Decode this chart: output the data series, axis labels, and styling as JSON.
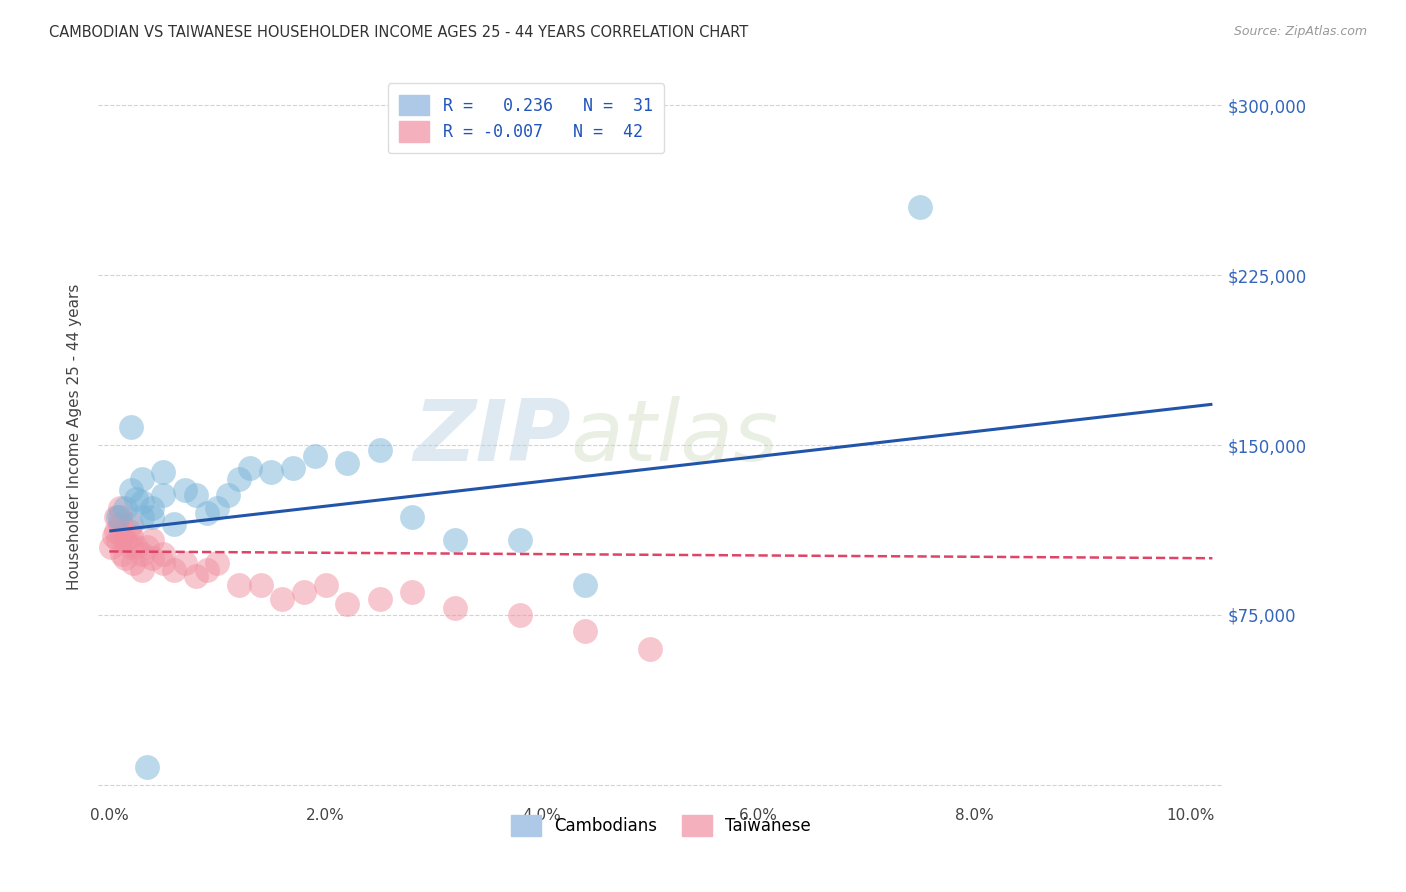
{
  "title": "CAMBODIAN VS TAIWANESE HOUSEHOLDER INCOME AGES 25 - 44 YEARS CORRELATION CHART",
  "source": "Source: ZipAtlas.com",
  "ylabel": "Householder Income Ages 25 - 44 years",
  "y_ticks": [
    0,
    75000,
    150000,
    225000,
    300000
  ],
  "y_tick_labels_right": [
    "",
    "$75,000",
    "$150,000",
    "$225,000",
    "$300,000"
  ],
  "xlim": [
    -0.001,
    0.103
  ],
  "ylim": [
    -8000,
    315000
  ],
  "legend_bottom": [
    "Cambodians",
    "Taiwanese"
  ],
  "cambodian_color": "#7ab4d8",
  "taiwanese_color": "#f090a0",
  "cambodian_line_color": "#2255aa",
  "taiwanese_line_color": "#dd4466",
  "background_color": "#ffffff",
  "grid_color": "#c8c8c8",
  "watermark_zip": "ZIP",
  "watermark_atlas": "atlas",
  "cambodians_x": [
    0.0008,
    0.0015,
    0.002,
    0.002,
    0.0025,
    0.003,
    0.003,
    0.003,
    0.004,
    0.004,
    0.005,
    0.005,
    0.006,
    0.007,
    0.008,
    0.009,
    0.01,
    0.011,
    0.012,
    0.013,
    0.015,
    0.017,
    0.019,
    0.022,
    0.025,
    0.028,
    0.032,
    0.038,
    0.044,
    0.0035,
    0.075
  ],
  "cambodians_y": [
    118000,
    122000,
    130000,
    158000,
    126000,
    118000,
    125000,
    135000,
    122000,
    118000,
    128000,
    138000,
    115000,
    130000,
    128000,
    120000,
    122000,
    128000,
    135000,
    140000,
    138000,
    140000,
    145000,
    142000,
    148000,
    118000,
    108000,
    108000,
    88000,
    8000,
    255000
  ],
  "taiwanese_x": [
    0.0002,
    0.0004,
    0.0006,
    0.0006,
    0.0008,
    0.001,
    0.001,
    0.001,
    0.0012,
    0.0012,
    0.0015,
    0.0015,
    0.0018,
    0.002,
    0.002,
    0.002,
    0.0022,
    0.0025,
    0.003,
    0.003,
    0.0035,
    0.004,
    0.004,
    0.005,
    0.005,
    0.006,
    0.007,
    0.008,
    0.009,
    0.01,
    0.012,
    0.014,
    0.016,
    0.018,
    0.02,
    0.022,
    0.025,
    0.028,
    0.032,
    0.038,
    0.044,
    0.05
  ],
  "taiwanese_y": [
    105000,
    110000,
    112000,
    118000,
    108000,
    115000,
    118000,
    122000,
    102000,
    110000,
    100000,
    108000,
    112000,
    105000,
    110000,
    115000,
    98000,
    105000,
    95000,
    102000,
    105000,
    100000,
    108000,
    98000,
    102000,
    95000,
    98000,
    92000,
    95000,
    98000,
    88000,
    88000,
    82000,
    85000,
    88000,
    80000,
    82000,
    85000,
    78000,
    75000,
    68000,
    60000
  ],
  "camb_trend_x0": 0.0,
  "camb_trend_y0": 112000,
  "camb_trend_x1": 0.102,
  "camb_trend_y1": 168000,
  "tai_trend_x0": 0.0,
  "tai_trend_y0": 103000,
  "tai_trend_x1": 0.102,
  "tai_trend_y1": 100000
}
